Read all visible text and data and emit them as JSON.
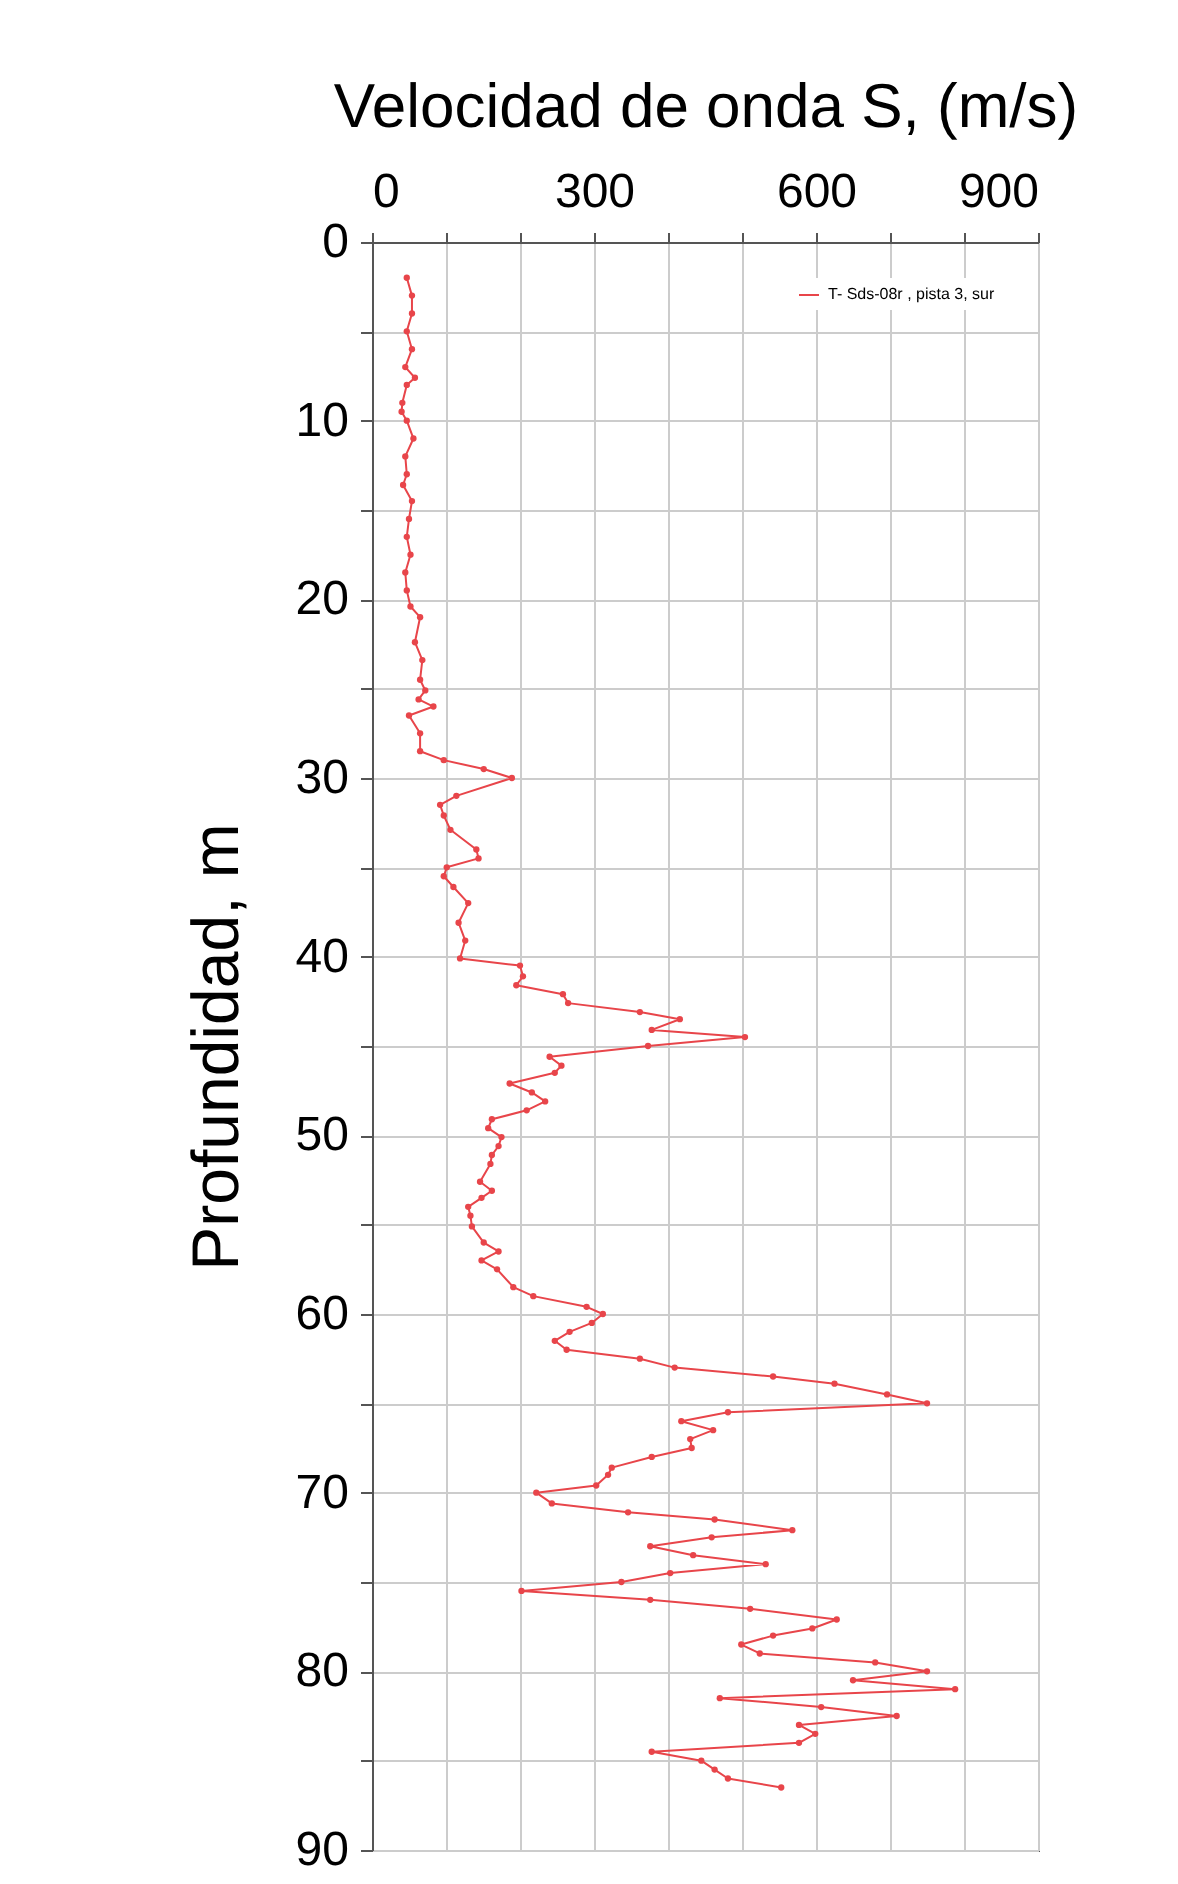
{
  "chart_data": {
    "type": "line",
    "xlabel": "Velocidad de onda S, (m/s)",
    "ylabel": "Profundidad, m",
    "xlim": [
      0,
      900
    ],
    "xticks": [
      0,
      {
        "value": 100,
        "label": null
      },
      {
        "value": 200,
        "label": null
      },
      300,
      {
        "value": 400,
        "label": null
      },
      {
        "value": 500,
        "label": null
      },
      600,
      {
        "value": 700,
        "label": null
      },
      {
        "value": 800,
        "label": null
      },
      900
    ],
    "ylim": [
      90,
      0
    ],
    "yticks": [
      0,
      {
        "value": 5,
        "label": null
      },
      10,
      {
        "value": 15,
        "label": null
      },
      20,
      {
        "value": 25,
        "label": null
      },
      30,
      {
        "value": 35,
        "label": null
      },
      40,
      {
        "value": 45,
        "label": null
      },
      50,
      {
        "value": 55,
        "label": null
      },
      60,
      {
        "value": 65,
        "label": null
      },
      70,
      {
        "value": 75,
        "label": null
      },
      80,
      {
        "value": 85,
        "label": null
      },
      90
    ],
    "grid": true,
    "legend": "top right",
    "marker": "circle",
    "line_style": "solid",
    "series": [
      {
        "name": "T- Sds-08r , pista 3, sur",
        "color": "#e8454a",
        "x": [
          47,
          54,
          54,
          47,
          54,
          45,
          58,
          47,
          41,
          40,
          47,
          56,
          45,
          47,
          42,
          54,
          50,
          47,
          52,
          45,
          47,
          52,
          65,
          58,
          68,
          65,
          72,
          63,
          83,
          50,
          65,
          65,
          97,
          151,
          189,
          114,
          92,
          97,
          106,
          141,
          144,
          101,
          97,
          110,
          130,
          117,
          126,
          119,
          200,
          204,
          195,
          258,
          265,
          362,
          416,
          378,
          504,
          373,
          240,
          256,
          247,
          186,
          216,
          234,
          209,
          162,
          157,
          175,
          171,
          162,
          160,
          146,
          162,
          148,
          130,
          133,
          135,
          151,
          171,
          148,
          169,
          191,
          218,
          290,
          312,
          297,
          267,
          247,
          263,
          362,
          409,
          542,
          625,
          696,
          750,
          481,
          418,
          461,
          430,
          432,
          378,
          324,
          319,
          303,
          222,
          243,
          346,
          463,
          568,
          459,
          376,
          434,
          532,
          403,
          337,
          202,
          376,
          511,
          628,
          595,
          542,
          499,
          524,
          680,
          750,
          650,
          788,
          470,
          607,
          709,
          577,
          599,
          577,
          378,
          445,
          463,
          481,
          553
        ],
        "values": [
          2,
          3,
          4,
          5,
          6,
          7,
          7.6,
          8,
          9,
          9.5,
          10,
          11,
          12,
          13,
          13.6,
          14.5,
          15.5,
          16.5,
          17.5,
          18.5,
          19.5,
          20.4,
          21,
          22.4,
          23.4,
          24.5,
          25.1,
          25.6,
          26,
          26.5,
          27.5,
          28.5,
          29,
          29.5,
          30,
          31,
          31.5,
          32.1,
          32.9,
          34,
          34.5,
          35,
          35.5,
          36.1,
          37,
          38.1,
          39.1,
          40.1,
          40.5,
          41.1,
          41.6,
          42.1,
          42.6,
          43.1,
          43.5,
          44.1,
          44.5,
          45,
          45.6,
          46.1,
          46.5,
          47.1,
          47.6,
          48.1,
          48.6,
          49.1,
          49.6,
          50.1,
          50.6,
          51.1,
          51.6,
          52.6,
          53.1,
          53.5,
          54,
          54.5,
          55.1,
          56,
          56.5,
          57,
          57.5,
          58.5,
          59,
          59.6,
          60,
          60.5,
          61,
          61.5,
          62,
          62.5,
          63,
          63.5,
          63.9,
          64.5,
          65,
          65.5,
          66,
          66.5,
          67,
          67.5,
          68,
          68.6,
          69,
          69.6,
          70,
          70.6,
          71.1,
          71.5,
          72.1,
          72.5,
          73,
          73.5,
          74,
          74.5,
          75,
          75.5,
          76,
          76.5,
          77.1,
          77.6,
          78,
          78.5,
          79,
          79.5,
          80,
          80.5,
          81,
          81.5,
          82,
          82.5,
          83,
          83.5,
          84,
          84.5,
          85,
          85.5,
          86,
          86.5
        ]
      }
    ]
  }
}
